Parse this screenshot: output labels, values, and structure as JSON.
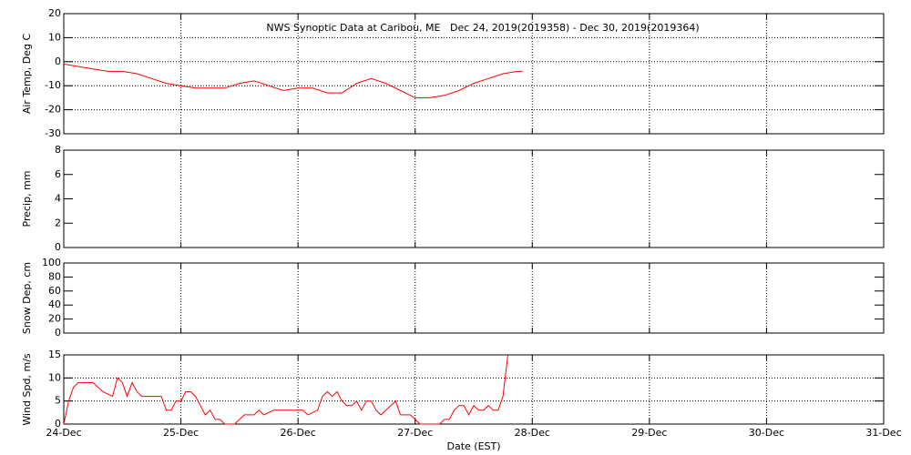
{
  "chart_data": [
    {
      "type": "line",
      "title": "NWS Synoptic Data at Caribou, ME   Dec 24, 2019(2019358) - Dec 30, 2019(2019364)",
      "y_label": "Air Temp, Deg C",
      "ylim": [
        -30,
        20
      ],
      "yticks": [
        -30,
        -20,
        -10,
        0,
        10,
        20
      ],
      "grid": "both",
      "series": [
        {
          "color": "#ff0000",
          "x": [
            0,
            3,
            6,
            9,
            12,
            15,
            18,
            21,
            24,
            27,
            30,
            33,
            36,
            39,
            42,
            45,
            48,
            51,
            54,
            57,
            60,
            63,
            66,
            69,
            72,
            75,
            78,
            81,
            84,
            87,
            90,
            93,
            94
          ],
          "values": [
            -1,
            -2,
            -3,
            -4,
            -4,
            -5,
            -7,
            -9,
            -10,
            -11,
            -11,
            -11,
            -9,
            -8,
            -10,
            -12,
            -11,
            -11,
            -13,
            -13,
            -9,
            -7,
            -9,
            -12,
            -15,
            -15,
            -14,
            -12,
            -9,
            -7,
            -5,
            -4,
            -4
          ]
        }
      ]
    },
    {
      "type": "line",
      "y_label": "Precip, mm",
      "ylim": [
        0,
        8
      ],
      "yticks": [
        0,
        2,
        4,
        6,
        8
      ],
      "grid": "x",
      "series": []
    },
    {
      "type": "line",
      "y_label": "Snow Dep, cm",
      "ylim": [
        0,
        100
      ],
      "yticks": [
        0,
        20,
        40,
        60,
        80,
        100
      ],
      "grid": "x",
      "series": []
    },
    {
      "type": "line",
      "y_label": "Wind Spd, m/s",
      "x_label": "Date (EST)",
      "ylim": [
        0,
        15
      ],
      "yticks": [
        0,
        5,
        10,
        15
      ],
      "grid": "both",
      "xlim": [
        0,
        168
      ],
      "xticks": [
        {
          "value": 0,
          "label": "24-Dec"
        },
        {
          "value": 24,
          "label": "25-Dec"
        },
        {
          "value": 48,
          "label": "26-Dec"
        },
        {
          "value": 72,
          "label": "27-Dec"
        },
        {
          "value": 96,
          "label": "28-Dec"
        },
        {
          "value": 120,
          "label": "29-Dec"
        },
        {
          "value": 144,
          "label": "30-Dec"
        },
        {
          "value": 168,
          "label": "31-Dec"
        }
      ],
      "series": [
        {
          "color": "#ff0000",
          "x": [
            0,
            1,
            2,
            3,
            4,
            6,
            8,
            10,
            11,
            12,
            13,
            14,
            15,
            16,
            18,
            20,
            21,
            22,
            23,
            24,
            25,
            26,
            27,
            28,
            29,
            30,
            31,
            32,
            33,
            35,
            37,
            38,
            39,
            40,
            41,
            43,
            45,
            47,
            49,
            50,
            52,
            53,
            54,
            55,
            56,
            57,
            58,
            59,
            60,
            61,
            62,
            63,
            64,
            65,
            66,
            68,
            69,
            71,
            72,
            73,
            77,
            78,
            79,
            80,
            81,
            82,
            83,
            84,
            85,
            86,
            87,
            88,
            89,
            90,
            91
          ],
          "values": [
            0,
            5,
            8,
            9,
            9,
            9,
            7,
            6,
            10,
            9,
            6,
            9,
            7,
            6,
            6,
            6,
            3,
            3,
            5,
            5,
            7,
            7,
            6,
            4,
            2,
            3,
            1,
            1,
            0,
            0,
            2,
            2,
            2,
            3,
            2,
            3,
            3,
            3,
            3,
            2,
            3,
            6,
            7,
            6,
            7,
            5,
            4,
            4,
            5,
            3,
            5,
            5,
            3,
            2,
            3,
            5,
            2,
            2,
            1,
            0,
            0,
            1,
            1,
            3,
            4,
            4,
            2,
            4,
            3,
            3,
            4,
            3,
            3,
            6,
            15
          ]
        }
      ]
    }
  ]
}
